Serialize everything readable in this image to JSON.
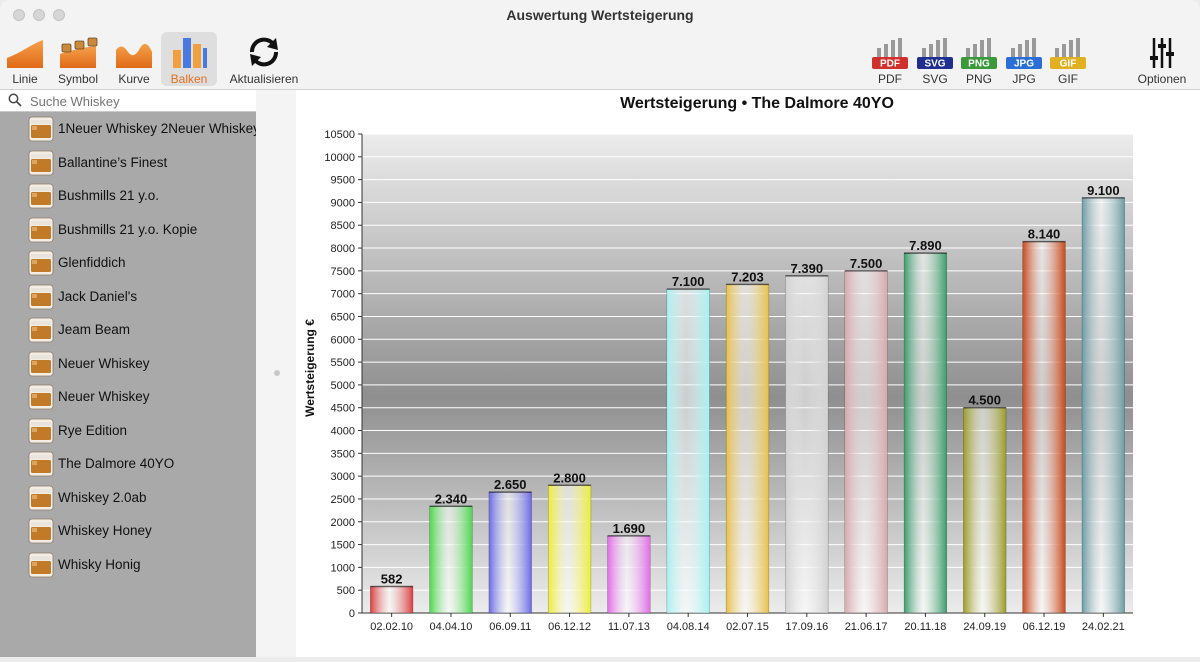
{
  "window": {
    "title": "Auswertung Wertsteigerung"
  },
  "toolbar": {
    "left": [
      {
        "id": "linie",
        "label": "Linie",
        "icon": "area-chart-icon"
      },
      {
        "id": "symbol",
        "label": "Symbol",
        "icon": "whiskey-symbol-chart-icon"
      },
      {
        "id": "kurve",
        "label": "Kurve",
        "icon": "curve-chart-icon"
      },
      {
        "id": "balken",
        "label": "Balken",
        "icon": "bar-chart-icon",
        "active": true
      },
      {
        "id": "aktualisieren",
        "label": "Aktualisieren",
        "icon": "refresh-icon"
      }
    ],
    "right": [
      {
        "id": "pdf",
        "label": "PDF",
        "badge": "PDF",
        "color": "#d0312d"
      },
      {
        "id": "svg",
        "label": "SVG",
        "badge": "SVG",
        "color": "#1f2f8f"
      },
      {
        "id": "png",
        "label": "PNG",
        "badge": "PNG",
        "color": "#3a9a3a"
      },
      {
        "id": "jpg",
        "label": "JPG",
        "badge": "JPG",
        "color": "#2a6fd6"
      },
      {
        "id": "gif",
        "label": "GIF",
        "badge": "GIF",
        "color": "#e0b020"
      },
      {
        "id": "optionen",
        "label": "Optionen",
        "icon": "sliders-icon"
      }
    ]
  },
  "search": {
    "placeholder": "Suche Whiskey",
    "value": ""
  },
  "sidebar": {
    "items": [
      "1Neuer Whiskey 2Neuer Whiskey",
      "Ballantine’s Finest",
      "Bushmills 21 y.o.",
      "Bushmills 21 y.o. Kopie",
      "Glenfiddich",
      "Jack Daniel's",
      "Jeam Beam",
      "Neuer Whiskey",
      "Neuer Whiskey",
      "Rye Edition",
      "The Dalmore 40YO",
      "Whiskey 2.0ab",
      "Whiskey Honey",
      "Whisky Honig"
    ]
  },
  "chart_data": {
    "type": "bar",
    "title": "Wertsteigerung • The Dalmore 40YO",
    "ylabel": "Wertsteigerung €",
    "xlabel": "",
    "ylim": [
      0,
      10500
    ],
    "ytick_step": 500,
    "grid": true,
    "categories": [
      "02.02.10",
      "04.04.10",
      "06.09.11",
      "06.12.12",
      "11.07.13",
      "04.08.14",
      "02.07.15",
      "17.09.16",
      "21.06.17",
      "20.11.18",
      "24.09.19",
      "06.12.19",
      "24.02.21"
    ],
    "values": [
      582,
      2340,
      2650,
      2800,
      1690,
      7100,
      7203,
      7390,
      7500,
      7890,
      4500,
      8140,
      9100
    ],
    "labels": [
      "582",
      "2.340",
      "2.650",
      "2.800",
      "1.690",
      "7.100",
      "7.203",
      "7.390",
      "7.500",
      "7.890",
      "4.500",
      "8.140",
      "9.100"
    ],
    "colors": [
      "#d94040",
      "#4fd64f",
      "#6b6be6",
      "#eded3a",
      "#e06ee6",
      "#a8f0f2",
      "#e8c048",
      "#d2d2d2",
      "#d8a8ac",
      "#3c9c6c",
      "#9c9c2a",
      "#c8481c",
      "#6c9ca4"
    ]
  }
}
